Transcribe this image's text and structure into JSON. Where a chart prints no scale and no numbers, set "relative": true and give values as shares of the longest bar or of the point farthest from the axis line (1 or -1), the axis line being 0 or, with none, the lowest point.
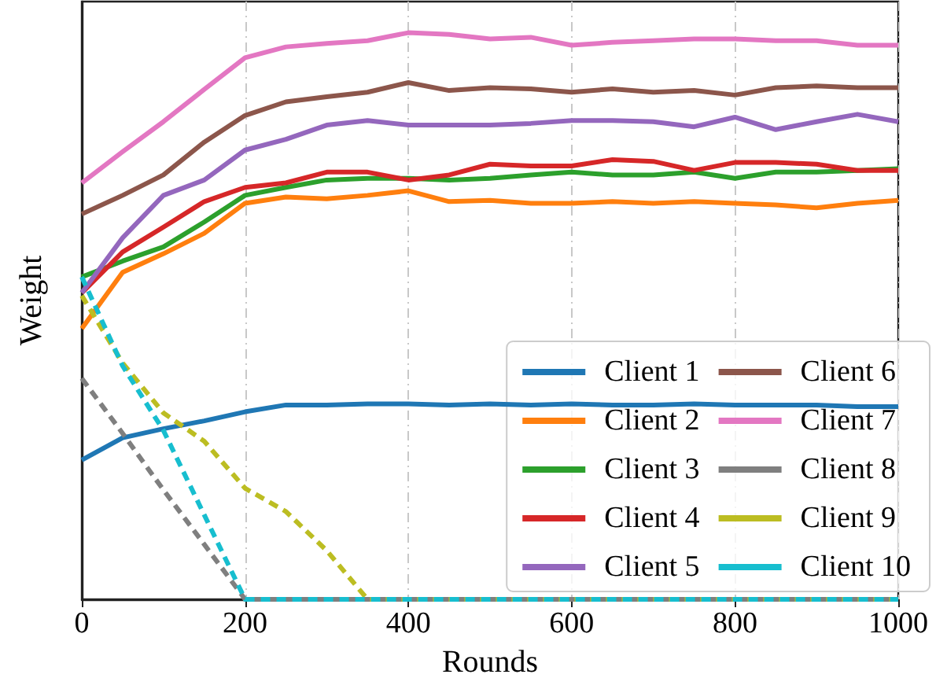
{
  "chart_data": {
    "type": "line",
    "xlabel": "Rounds",
    "ylabel": "Weight",
    "relative": true,
    "x": [
      0,
      50,
      100,
      150,
      200,
      250,
      300,
      350,
      400,
      450,
      500,
      550,
      600,
      650,
      700,
      750,
      800,
      850,
      900,
      950,
      1000
    ],
    "xlim": [
      0,
      1000
    ],
    "xticks": [
      0,
      200,
      400,
      600,
      800,
      1000
    ],
    "grid": "x",
    "legend": "bottom right",
    "marker": "none",
    "series": [
      {
        "name": "Client 1",
        "color": "#1f77b4",
        "line_style": "solid",
        "values": [
          0.246,
          0.285,
          0.301,
          0.315,
          0.331,
          0.343,
          0.343,
          0.345,
          0.345,
          0.343,
          0.345,
          0.343,
          0.345,
          0.343,
          0.343,
          0.345,
          0.343,
          0.343,
          0.343,
          0.34,
          0.34
        ]
      },
      {
        "name": "Client 2",
        "color": "#ff7f0e",
        "line_style": "solid",
        "values": [
          0.478,
          0.577,
          0.61,
          0.646,
          0.699,
          0.71,
          0.707,
          0.713,
          0.721,
          0.702,
          0.704,
          0.699,
          0.699,
          0.702,
          0.699,
          0.702,
          0.699,
          0.696,
          0.691,
          0.699,
          0.704
        ]
      },
      {
        "name": "Client 3",
        "color": "#2ca02c",
        "line_style": "solid",
        "values": [
          0.569,
          0.597,
          0.622,
          0.666,
          0.713,
          0.727,
          0.74,
          0.743,
          0.743,
          0.74,
          0.743,
          0.749,
          0.754,
          0.749,
          0.749,
          0.754,
          0.743,
          0.754,
          0.754,
          0.757,
          0.76
        ]
      },
      {
        "name": "Client 4",
        "color": "#d62728",
        "line_style": "solid",
        "values": [
          0.541,
          0.613,
          0.657,
          0.702,
          0.727,
          0.735,
          0.754,
          0.754,
          0.74,
          0.749,
          0.768,
          0.765,
          0.765,
          0.776,
          0.773,
          0.757,
          0.771,
          0.771,
          0.768,
          0.757,
          0.757
        ]
      },
      {
        "name": "Client 5",
        "color": "#9467bd",
        "line_style": "solid",
        "values": [
          0.541,
          0.638,
          0.713,
          0.74,
          0.793,
          0.812,
          0.837,
          0.845,
          0.837,
          0.837,
          0.837,
          0.84,
          0.845,
          0.845,
          0.843,
          0.834,
          0.851,
          0.829,
          0.843,
          0.856,
          0.843
        ]
      },
      {
        "name": "Client 6",
        "color": "#8c564b",
        "line_style": "solid",
        "values": [
          0.68,
          0.713,
          0.749,
          0.807,
          0.854,
          0.878,
          0.887,
          0.895,
          0.912,
          0.898,
          0.903,
          0.901,
          0.895,
          0.901,
          0.895,
          0.898,
          0.89,
          0.903,
          0.906,
          0.903,
          0.903
        ]
      },
      {
        "name": "Client 7",
        "color": "#e377c2",
        "line_style": "solid",
        "values": [
          0.735,
          0.79,
          0.843,
          0.9,
          0.956,
          0.975,
          0.981,
          0.986,
          1,
          0.997,
          0.989,
          0.992,
          0.978,
          0.983,
          0.986,
          0.989,
          0.989,
          0.986,
          0.986,
          0.978,
          0.978
        ]
      },
      {
        "name": "Client 8",
        "color": "#7f7f7f",
        "line_style": "dashed",
        "values": [
          0.39,
          0.293,
          0.193,
          0.097,
          0,
          0,
          0,
          0,
          0,
          0,
          0,
          0,
          0,
          0,
          0,
          0,
          0,
          0,
          0,
          0,
          0
        ]
      },
      {
        "name": "Client 9",
        "color": "#bcbd22",
        "line_style": "dashed",
        "values": [
          0.536,
          0.417,
          0.329,
          0.279,
          0.196,
          0.155,
          0.086,
          0,
          0,
          0,
          0,
          0,
          0,
          0,
          0,
          0,
          0,
          0,
          0,
          0,
          0
        ]
      },
      {
        "name": "Client 10",
        "color": "#17becf",
        "line_style": "dashed",
        "values": [
          0.569,
          0.412,
          0.298,
          0.149,
          0,
          0,
          0,
          0,
          0,
          0,
          0,
          0,
          0,
          0,
          0,
          0,
          0,
          0,
          0,
          0,
          0
        ]
      }
    ]
  }
}
